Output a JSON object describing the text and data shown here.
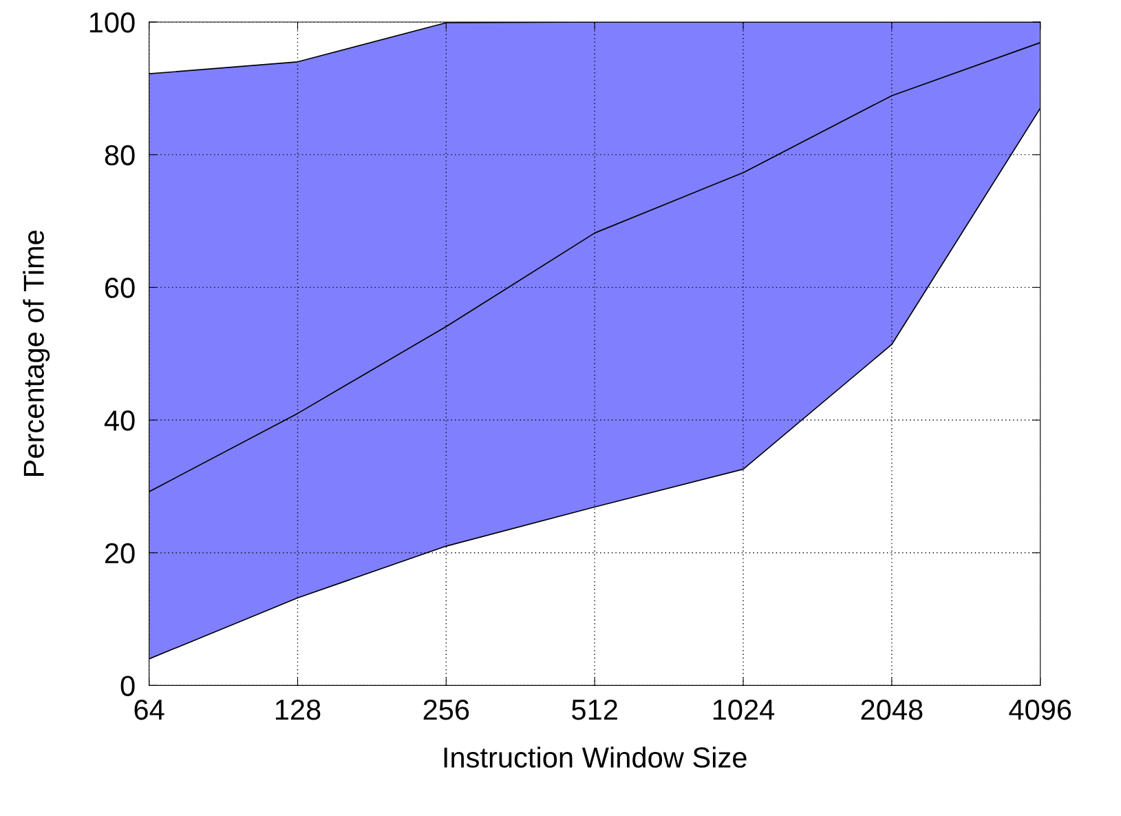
{
  "chart_data": {
    "type": "area",
    "stacked": true,
    "xlabel": "Instruction Window Size",
    "ylabel": "Percentage of Time",
    "categories": [
      "64",
      "128",
      "256",
      "512",
      "1024",
      "2048",
      "4096"
    ],
    "series": [
      {
        "color": "#ffffff",
        "values": [
          4.0,
          13.2,
          21.0,
          26.9,
          32.6,
          51.4,
          87.0
        ]
      },
      {
        "color": "#8080ff",
        "values": [
          88.2,
          80.8,
          78.9,
          73.1,
          67.4,
          48.6,
          13.0
        ]
      },
      {
        "type": "line",
        "color": "#000000",
        "values": [
          29.2,
          41.0,
          54.1,
          68.2,
          77.3,
          88.9,
          96.9
        ]
      }
    ],
    "ylim": [
      0,
      100
    ],
    "yticks": [
      0,
      20,
      40,
      60,
      80,
      100
    ],
    "grid": true,
    "line_style": "solid",
    "marker": "none"
  }
}
